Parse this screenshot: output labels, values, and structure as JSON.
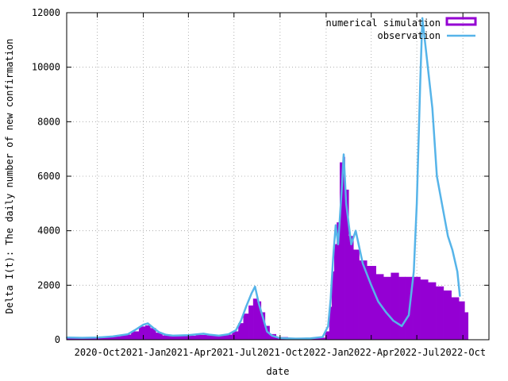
{
  "chart_data": {
    "type": "bar",
    "title": "",
    "xlabel": "date",
    "ylabel": "Delta I(t): The daily number of new confirmation",
    "grid": true,
    "legend_position": "top-right",
    "x_axis": {
      "type": "date",
      "range": [
        "2020-08-01",
        "2022-11-22"
      ],
      "ticks": [
        {
          "date": "2020-10-01",
          "label": "2020-Oct"
        },
        {
          "date": "2021-01-01",
          "label": "2021-Jan"
        },
        {
          "date": "2021-04-01",
          "label": "2021-Apr"
        },
        {
          "date": "2021-07-01",
          "label": "2021-Jul"
        },
        {
          "date": "2021-10-01",
          "label": "2021-Oct"
        },
        {
          "date": "2022-01-01",
          "label": "2022-Jan"
        },
        {
          "date": "2022-04-01",
          "label": "2022-Apr"
        },
        {
          "date": "2022-07-01",
          "label": "2022-Jul"
        },
        {
          "date": "2022-10-01",
          "label": "2022-Oct"
        }
      ]
    },
    "y_axis": {
      "range": [
        0,
        12000
      ],
      "ticks": [
        0,
        2000,
        4000,
        6000,
        8000,
        10000,
        12000
      ]
    },
    "series": [
      {
        "name": "numerical simulation",
        "type": "bar",
        "color": "#9400d3",
        "points": [
          [
            "2020-08-01",
            60
          ],
          [
            "2020-09-01",
            70
          ],
          [
            "2020-10-01",
            80
          ],
          [
            "2020-11-01",
            110
          ],
          [
            "2020-12-01",
            180
          ],
          [
            "2020-12-15",
            300
          ],
          [
            "2021-01-01",
            480
          ],
          [
            "2021-01-10",
            520
          ],
          [
            "2021-01-20",
            420
          ],
          [
            "2021-02-01",
            250
          ],
          [
            "2021-02-15",
            150
          ],
          [
            "2021-03-01",
            120
          ],
          [
            "2021-04-01",
            140
          ],
          [
            "2021-05-01",
            170
          ],
          [
            "2021-05-15",
            150
          ],
          [
            "2021-06-01",
            140
          ],
          [
            "2021-06-20",
            180
          ],
          [
            "2021-07-05",
            300
          ],
          [
            "2021-07-15",
            600
          ],
          [
            "2021-07-25",
            950
          ],
          [
            "2021-08-05",
            1250
          ],
          [
            "2021-08-12",
            1500
          ],
          [
            "2021-08-20",
            1400
          ],
          [
            "2021-08-28",
            1000
          ],
          [
            "2021-09-05",
            500
          ],
          [
            "2021-09-15",
            200
          ],
          [
            "2021-10-01",
            90
          ],
          [
            "2021-11-01",
            60
          ],
          [
            "2021-12-01",
            60
          ],
          [
            "2021-12-25",
            70
          ],
          [
            "2022-01-05",
            300
          ],
          [
            "2022-01-10",
            1200
          ],
          [
            "2022-01-15",
            2500
          ],
          [
            "2022-01-20",
            3500
          ],
          [
            "2022-01-25",
            4300
          ],
          [
            "2022-02-01",
            6500
          ],
          [
            "2022-02-05",
            6700
          ],
          [
            "2022-02-10",
            5500
          ],
          [
            "2022-02-20",
            3800
          ],
          [
            "2022-03-01",
            3300
          ],
          [
            "2022-03-15",
            2900
          ],
          [
            "2022-04-01",
            2700
          ],
          [
            "2022-04-20",
            2400
          ],
          [
            "2022-05-01",
            2300
          ],
          [
            "2022-05-20",
            2450
          ],
          [
            "2022-06-01",
            2300
          ],
          [
            "2022-06-15",
            2300
          ],
          [
            "2022-07-01",
            2300
          ],
          [
            "2022-07-15",
            2200
          ],
          [
            "2022-08-01",
            2100
          ],
          [
            "2022-08-15",
            1950
          ],
          [
            "2022-09-01",
            1800
          ],
          [
            "2022-09-15",
            1550
          ],
          [
            "2022-10-01",
            1400
          ],
          [
            "2022-10-08",
            1000
          ]
        ]
      },
      {
        "name": "observation",
        "type": "line",
        "color": "#56b4e9",
        "points": [
          [
            "2020-08-01",
            80
          ],
          [
            "2020-09-01",
            70
          ],
          [
            "2020-10-01",
            80
          ],
          [
            "2020-11-01",
            120
          ],
          [
            "2020-12-01",
            200
          ],
          [
            "2020-12-15",
            350
          ],
          [
            "2021-01-01",
            550
          ],
          [
            "2021-01-10",
            600
          ],
          [
            "2021-01-20",
            450
          ],
          [
            "2021-02-01",
            280
          ],
          [
            "2021-02-15",
            180
          ],
          [
            "2021-03-01",
            150
          ],
          [
            "2021-04-01",
            170
          ],
          [
            "2021-05-01",
            220
          ],
          [
            "2021-05-15",
            180
          ],
          [
            "2021-06-01",
            150
          ],
          [
            "2021-06-20",
            200
          ],
          [
            "2021-07-05",
            350
          ],
          [
            "2021-07-15",
            700
          ],
          [
            "2021-07-25",
            1200
          ],
          [
            "2021-08-05",
            1700
          ],
          [
            "2021-08-12",
            1950
          ],
          [
            "2021-08-20",
            1300
          ],
          [
            "2021-08-28",
            800
          ],
          [
            "2021-09-05",
            300
          ],
          [
            "2021-09-15",
            150
          ],
          [
            "2021-10-01",
            60
          ],
          [
            "2021-11-01",
            40
          ],
          [
            "2021-12-01",
            50
          ],
          [
            "2021-12-25",
            100
          ],
          [
            "2022-01-05",
            500
          ],
          [
            "2022-01-10",
            1500
          ],
          [
            "2022-01-15",
            3000
          ],
          [
            "2022-01-20",
            4200
          ],
          [
            "2022-01-25",
            3500
          ],
          [
            "2022-02-01",
            5500
          ],
          [
            "2022-02-05",
            6800
          ],
          [
            "2022-02-10",
            5000
          ],
          [
            "2022-02-20",
            3500
          ],
          [
            "2022-03-01",
            4000
          ],
          [
            "2022-03-15",
            2800
          ],
          [
            "2022-04-01",
            2000
          ],
          [
            "2022-04-15",
            1400
          ],
          [
            "2022-05-01",
            1000
          ],
          [
            "2022-05-15",
            700
          ],
          [
            "2022-06-01",
            500
          ],
          [
            "2022-06-15",
            900
          ],
          [
            "2022-06-25",
            2500
          ],
          [
            "2022-07-01",
            5000
          ],
          [
            "2022-07-08",
            9500
          ],
          [
            "2022-07-12",
            11800
          ],
          [
            "2022-07-20",
            10500
          ],
          [
            "2022-08-01",
            8500
          ],
          [
            "2022-08-10",
            6000
          ],
          [
            "2022-08-20",
            5000
          ],
          [
            "2022-09-01",
            3800
          ],
          [
            "2022-09-10",
            3300
          ],
          [
            "2022-09-20",
            2500
          ],
          [
            "2022-09-25",
            1600
          ]
        ]
      }
    ]
  }
}
